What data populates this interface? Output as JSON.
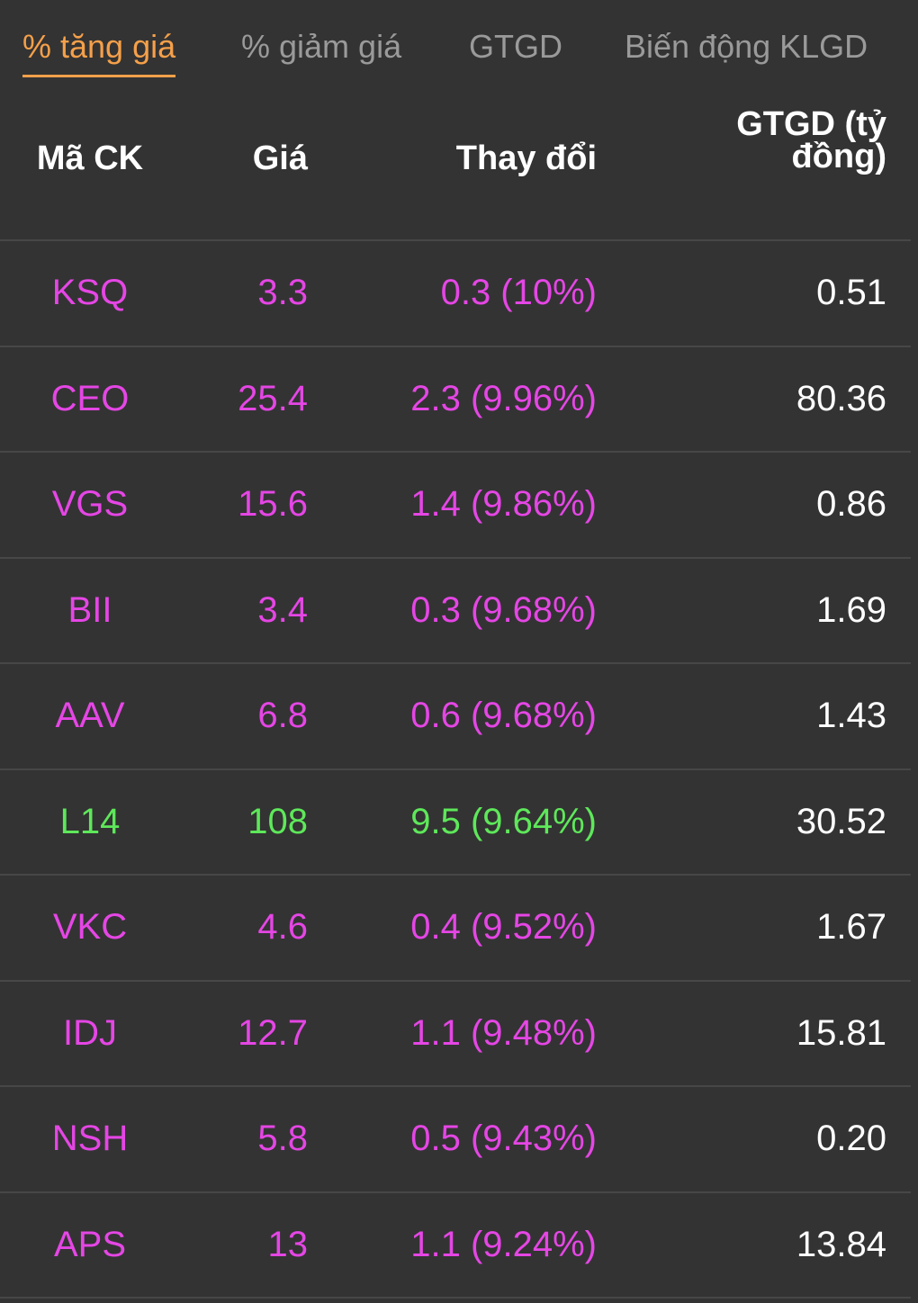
{
  "colors": {
    "background": "#333333",
    "active_tab": "#f5a04a",
    "inactive_tab": "#9a9a9a",
    "ceiling": "#e546e5",
    "up": "#5ee85a",
    "divider": "#474747"
  },
  "tabs": [
    {
      "label": "% tăng giá",
      "active": true
    },
    {
      "label": "% giảm giá",
      "active": false
    },
    {
      "label": "GTGD",
      "active": false
    },
    {
      "label": "Biến động KLGD",
      "active": false
    }
  ],
  "table": {
    "headers": {
      "code": "Mã CK",
      "price": "Giá",
      "change": "Thay đổi",
      "value_line1": "GTGD (tỷ",
      "value_line2": "đồng)"
    },
    "rows": [
      {
        "code": "KSQ",
        "price": "3.3",
        "change": "0.3 (10%)",
        "value": "0.51",
        "status": "ceiling"
      },
      {
        "code": "CEO",
        "price": "25.4",
        "change": "2.3 (9.96%)",
        "value": "80.36",
        "status": "ceiling"
      },
      {
        "code": "VGS",
        "price": "15.6",
        "change": "1.4 (9.86%)",
        "value": "0.86",
        "status": "ceiling"
      },
      {
        "code": "BII",
        "price": "3.4",
        "change": "0.3 (9.68%)",
        "value": "1.69",
        "status": "ceiling"
      },
      {
        "code": "AAV",
        "price": "6.8",
        "change": "0.6 (9.68%)",
        "value": "1.43",
        "status": "ceiling"
      },
      {
        "code": "L14",
        "price": "108",
        "change": "9.5 (9.64%)",
        "value": "30.52",
        "status": "up"
      },
      {
        "code": "VKC",
        "price": "4.6",
        "change": "0.4 (9.52%)",
        "value": "1.67",
        "status": "ceiling"
      },
      {
        "code": "IDJ",
        "price": "12.7",
        "change": "1.1 (9.48%)",
        "value": "15.81",
        "status": "ceiling"
      },
      {
        "code": "NSH",
        "price": "5.8",
        "change": "0.5 (9.43%)",
        "value": "0.20",
        "status": "ceiling"
      },
      {
        "code": "APS",
        "price": "13",
        "change": "1.1 (9.24%)",
        "value": "13.84",
        "status": "ceiling"
      }
    ]
  }
}
